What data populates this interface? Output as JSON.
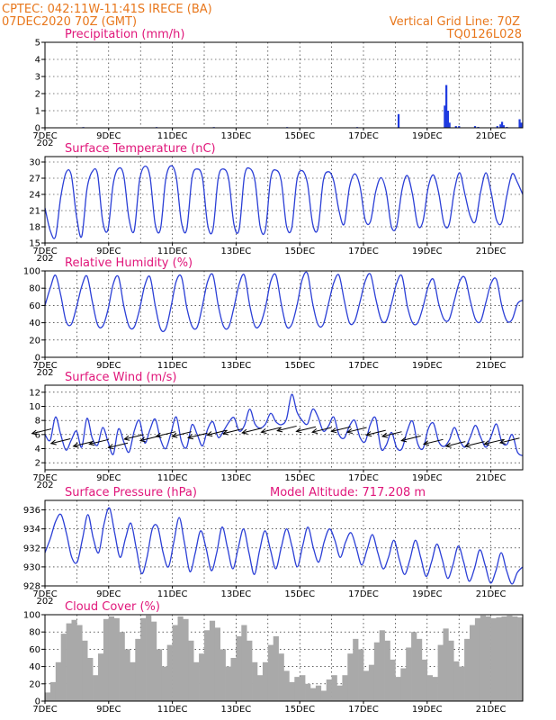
{
  "header": {
    "line1": "CPTEC:   042:11W-11:41S   IRECE (BA)",
    "line2": "07DEC2020 70Z (GMT)",
    "grid_line": "Vertical Grid Line: 70Z",
    "code": "TQ0126L028"
  },
  "colors": {
    "line": "#2b3fd6",
    "bar_precip": "#1f3be0",
    "cloud": "#a9a9a9",
    "title": "#e0167a",
    "header": "#e8771c"
  },
  "x_labels": [
    "7DEC",
    "9DEC",
    "11DEC",
    "13DEC",
    "15DEC",
    "17DEC",
    "19DEC",
    "21DEC"
  ],
  "x_sublabel": "202",
  "chart_data": [
    {
      "id": "precipitation",
      "type": "bar",
      "title": "Precipitation (mm/h)",
      "ylim": [
        0,
        5
      ],
      "yticks": [
        0,
        1,
        2,
        3,
        4,
        5
      ],
      "x_range_days": [
        7,
        22
      ],
      "bars": [
        [
          18.1,
          0.8
        ],
        [
          19.55,
          1.3
        ],
        [
          19.6,
          2.5
        ],
        [
          19.65,
          1.0
        ],
        [
          19.7,
          0.3
        ],
        [
          19.9,
          0.1
        ],
        [
          20.0,
          0.1
        ],
        [
          20.5,
          0.1
        ],
        [
          20.6,
          0.05
        ],
        [
          21.2,
          0.1
        ],
        [
          21.3,
          0.2
        ],
        [
          21.35,
          0.35
        ],
        [
          21.4,
          0.15
        ],
        [
          21.5,
          0.05
        ],
        [
          21.9,
          0.5
        ],
        [
          21.95,
          0.3
        ],
        [
          8.2,
          0.02
        ],
        [
          10.5,
          0.02
        ],
        [
          12.3,
          0.02
        ],
        [
          14.6,
          0.02
        ],
        [
          16.8,
          0.02
        ]
      ]
    },
    {
      "id": "temperature",
      "type": "line",
      "title": "Surface Temperature (nC)",
      "ylim": [
        15,
        31
      ],
      "yticks": [
        15,
        18,
        21,
        24,
        27,
        30
      ],
      "x_range_days": [
        7,
        22
      ],
      "values": [
        21.5,
        17.3,
        16.2,
        23.5,
        28.0,
        27.6,
        20.0,
        16.2,
        25.0,
        28.2,
        27.8,
        19.0,
        17.5,
        26.0,
        28.8,
        27.5,
        19.5,
        17.3,
        26.5,
        29.2,
        27.3,
        18.5,
        17.6,
        26.8,
        29.3,
        27.2,
        18.8,
        17.5,
        27.0,
        28.7,
        27.0,
        18.3,
        17.5,
        27.0,
        28.7,
        26.8,
        18.4,
        17.6,
        27.4,
        28.8,
        26.5,
        18.0,
        17.5,
        27.0,
        28.5,
        26.5,
        18.2,
        17.8,
        26.7,
        28.4,
        26.0,
        18.5,
        17.7,
        26.5,
        28.2,
        26.5,
        21.0,
        18.5,
        25.3,
        27.8,
        25.5,
        19.3,
        19.0,
        24.5,
        27.1,
        24.5,
        18.0,
        18.2,
        24.8,
        27.5,
        24.0,
        18.3,
        19.0,
        25.3,
        27.6,
        24.3,
        18.6,
        18.5,
        24.8,
        28.0,
        24.0,
        20.0,
        19.0,
        24.5,
        28.0,
        24.3,
        19.3,
        18.8,
        23.9,
        27.8,
        26.2,
        24.0
      ]
    },
    {
      "id": "humidity",
      "type": "line",
      "title": "Relative Humidity (%)",
      "ylim": [
        0,
        100
      ],
      "yticks": [
        0,
        20,
        40,
        60,
        80,
        100
      ],
      "x_range_days": [
        7,
        22
      ],
      "values": [
        60,
        80,
        95,
        72,
        42,
        38,
        58,
        82,
        94,
        65,
        38,
        36,
        55,
        85,
        93,
        60,
        36,
        35,
        55,
        83,
        93,
        60,
        33,
        33,
        58,
        88,
        93,
        58,
        36,
        35,
        60,
        88,
        95,
        60,
        36,
        35,
        58,
        85,
        95,
        60,
        36,
        38,
        58,
        88,
        95,
        62,
        36,
        38,
        60,
        90,
        97,
        62,
        38,
        38,
        62,
        86,
        95,
        66,
        40,
        42,
        64,
        88,
        96,
        68,
        44,
        42,
        62,
        86,
        94,
        60,
        40,
        40,
        58,
        82,
        90,
        62,
        44,
        44,
        66,
        88,
        92,
        66,
        44,
        42,
        64,
        86,
        90,
        60,
        42,
        44,
        62,
        66
      ]
    },
    {
      "id": "wind",
      "type": "line",
      "title": "Surface Wind (m/s)",
      "ylim": [
        1,
        13
      ],
      "yticks": [
        2,
        4,
        6,
        8,
        10,
        12
      ],
      "x_range_days": [
        7,
        22
      ],
      "values": [
        6.0,
        5.2,
        8.5,
        6.0,
        3.8,
        5.2,
        6.5,
        4.2,
        8.3,
        5.5,
        4.5,
        7.0,
        5.0,
        3.2,
        6.8,
        5.0,
        3.5,
        6.5,
        8.0,
        4.8,
        6.7,
        8.2,
        5.3,
        4.0,
        6.2,
        8.5,
        5.0,
        4.2,
        7.4,
        6.0,
        4.4,
        6.8,
        7.8,
        5.6,
        6.5,
        7.7,
        8.4,
        6.5,
        7.3,
        9.6,
        7.5,
        6.9,
        7.5,
        9.0,
        7.8,
        7.4,
        8.2,
        11.7,
        9.2,
        8.0,
        7.5,
        9.6,
        8.5,
        6.5,
        7.2,
        8.5,
        6.0,
        5.5,
        7.2,
        8.0,
        5.6,
        5.0,
        7.5,
        8.3,
        4.0,
        4.5,
        6.3,
        4.1,
        4.0,
        6.5,
        7.9,
        4.7,
        4.0,
        6.8,
        7.6,
        5.0,
        4.3,
        5.2,
        7.0,
        5.2,
        4.2,
        5.6,
        7.3,
        5.6,
        4.2,
        5.8,
        7.5,
        5.0,
        4.6,
        6.0,
        3.5,
        3.0
      ],
      "arrows": [
        [
          7.2,
          6.8
        ],
        [
          7.8,
          5.4
        ],
        [
          8.5,
          5.0
        ],
        [
          9.0,
          5.3
        ],
        [
          9.6,
          4.8
        ],
        [
          10.1,
          6.0
        ],
        [
          10.6,
          5.8
        ],
        [
          11.1,
          6.4
        ],
        [
          11.6,
          6.4
        ],
        [
          12.1,
          6.2
        ],
        [
          12.7,
          6.6
        ],
        [
          13.2,
          6.8
        ],
        [
          13.8,
          6.9
        ],
        [
          14.4,
          7.0
        ],
        [
          14.9,
          7.2
        ],
        [
          15.5,
          7.1
        ],
        [
          16.0,
          7.0
        ],
        [
          16.6,
          7.1
        ],
        [
          17.1,
          7.0
        ],
        [
          17.7,
          6.6
        ],
        [
          18.2,
          6.4
        ],
        [
          18.8,
          5.8
        ],
        [
          19.5,
          5.3
        ],
        [
          20.2,
          5.0
        ],
        [
          20.8,
          5.0
        ],
        [
          21.4,
          5.3
        ],
        [
          21.9,
          5.5
        ]
      ]
    },
    {
      "id": "pressure",
      "type": "line",
      "title": "Surface Pressure (hPa)",
      "annotation": "Model Altitude: 717.208  m",
      "ylim": [
        928,
        937
      ],
      "yticks": [
        928,
        930,
        932,
        934,
        936
      ],
      "x_range_days": [
        7,
        22
      ],
      "values": [
        931.5,
        933.0,
        934.8,
        935.5,
        933.5,
        931.0,
        930.5,
        933.0,
        935.5,
        933.0,
        931.5,
        934.5,
        936.2,
        933.5,
        931.0,
        933.0,
        934.6,
        932.0,
        929.3,
        931.0,
        934.0,
        934.2,
        931.5,
        930.0,
        932.6,
        935.2,
        932.5,
        929.5,
        931.5,
        933.8,
        932.0,
        929.6,
        931.5,
        934.2,
        932.0,
        929.8,
        932.0,
        934.0,
        931.5,
        929.2,
        931.8,
        933.8,
        931.8,
        929.8,
        932.0,
        934.0,
        932.2,
        930.0,
        932.2,
        934.2,
        932.0,
        930.5,
        932.6,
        934.0,
        932.8,
        931.0,
        932.6,
        933.6,
        932.0,
        930.2,
        931.8,
        933.4,
        931.5,
        929.8,
        931.0,
        932.8,
        930.8,
        929.2,
        930.8,
        932.8,
        931.0,
        929.0,
        930.5,
        932.4,
        930.8,
        928.8,
        930.2,
        932.2,
        930.5,
        928.5,
        929.8,
        931.8,
        930.2,
        928.3,
        929.6,
        931.5,
        929.6,
        928.2,
        929.4,
        930.0
      ]
    },
    {
      "id": "cloud",
      "type": "area",
      "title": "Cloud Cover (%)",
      "ylim": [
        0,
        100
      ],
      "yticks": [
        0,
        20,
        40,
        60,
        80,
        100
      ],
      "x_range_days": [
        7,
        22
      ],
      "values": [
        10,
        22,
        45,
        78,
        90,
        94,
        88,
        70,
        50,
        30,
        55,
        95,
        98,
        96,
        80,
        60,
        45,
        72,
        96,
        99,
        92,
        60,
        40,
        65,
        88,
        98,
        95,
        70,
        45,
        55,
        82,
        93,
        85,
        60,
        40,
        50,
        75,
        88,
        70,
        45,
        30,
        45,
        65,
        75,
        55,
        35,
        22,
        28,
        30,
        20,
        15,
        18,
        12,
        25,
        30,
        18,
        30,
        55,
        72,
        60,
        35,
        42,
        68,
        82,
        70,
        48,
        28,
        38,
        62,
        80,
        72,
        48,
        30,
        28,
        65,
        84,
        70,
        46,
        40,
        72,
        88,
        96,
        99,
        98,
        96,
        97,
        98,
        99,
        98,
        97
      ]
    }
  ]
}
